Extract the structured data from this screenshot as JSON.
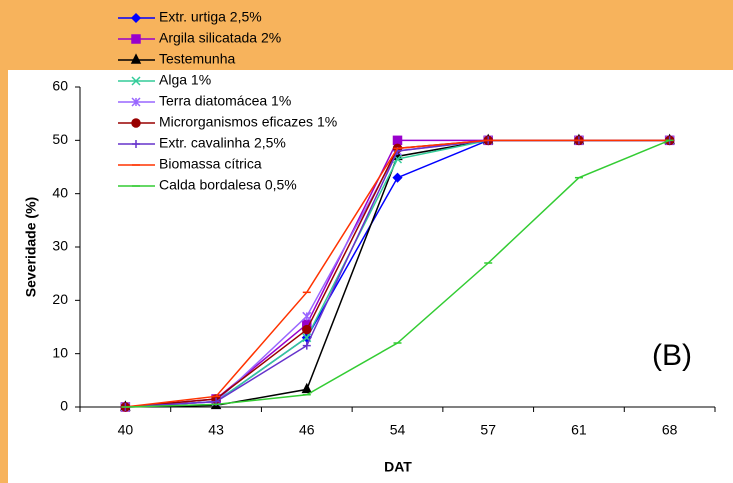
{
  "chart_data": {
    "type": "line",
    "annotation": "(B)",
    "xlabel": "DAT",
    "ylabel": "Severidade (%)",
    "categories": [
      "40",
      "43",
      "46",
      "54",
      "57",
      "61",
      "68"
    ],
    "ylim": [
      0,
      60
    ],
    "yticks": [
      0,
      10,
      20,
      30,
      40,
      50,
      60
    ],
    "grid": false,
    "series": [
      {
        "name": "Extr. urtiga 2,5%",
        "color": "#0000ff",
        "marker": "diamond",
        "values": [
          0,
          1,
          13,
          43,
          50,
          50,
          50
        ]
      },
      {
        "name": "Argila silicatada 2%",
        "color": "#9900cc",
        "marker": "square",
        "values": [
          0,
          1.5,
          15.5,
          50,
          50,
          50,
          50
        ]
      },
      {
        "name": "Testemunha",
        "color": "#000000",
        "marker": "triangle",
        "values": [
          0,
          0.3,
          3.3,
          47,
          50,
          50,
          50
        ]
      },
      {
        "name": "Alga 1%",
        "color": "#33cc99",
        "marker": "cross",
        "values": [
          0,
          1,
          13,
          46.5,
          50,
          50,
          50
        ]
      },
      {
        "name": "Terra diatomácea 1%",
        "color": "#9966ff",
        "marker": "star",
        "values": [
          0,
          1,
          17,
          48,
          50,
          50,
          50
        ]
      },
      {
        "name": "Microrganismos eficazes 1%",
        "color": "#990000",
        "marker": "circle",
        "values": [
          0,
          1.5,
          14.5,
          48.5,
          50,
          50,
          50
        ]
      },
      {
        "name": "Extr. cavalinha 2,5%",
        "color": "#6633cc",
        "marker": "plus",
        "values": [
          0,
          1,
          11.5,
          48,
          50,
          50,
          50
        ]
      },
      {
        "name": "Biomassa cítrica",
        "color": "#ff3300",
        "marker": "dash",
        "values": [
          0,
          2,
          21.5,
          48.5,
          50,
          50,
          50
        ]
      },
      {
        "name": "Calda bordalesa 0,5%",
        "color": "#33cc33",
        "marker": "dash",
        "values": [
          0,
          0.5,
          2.3,
          12,
          27,
          43,
          50
        ]
      }
    ]
  }
}
